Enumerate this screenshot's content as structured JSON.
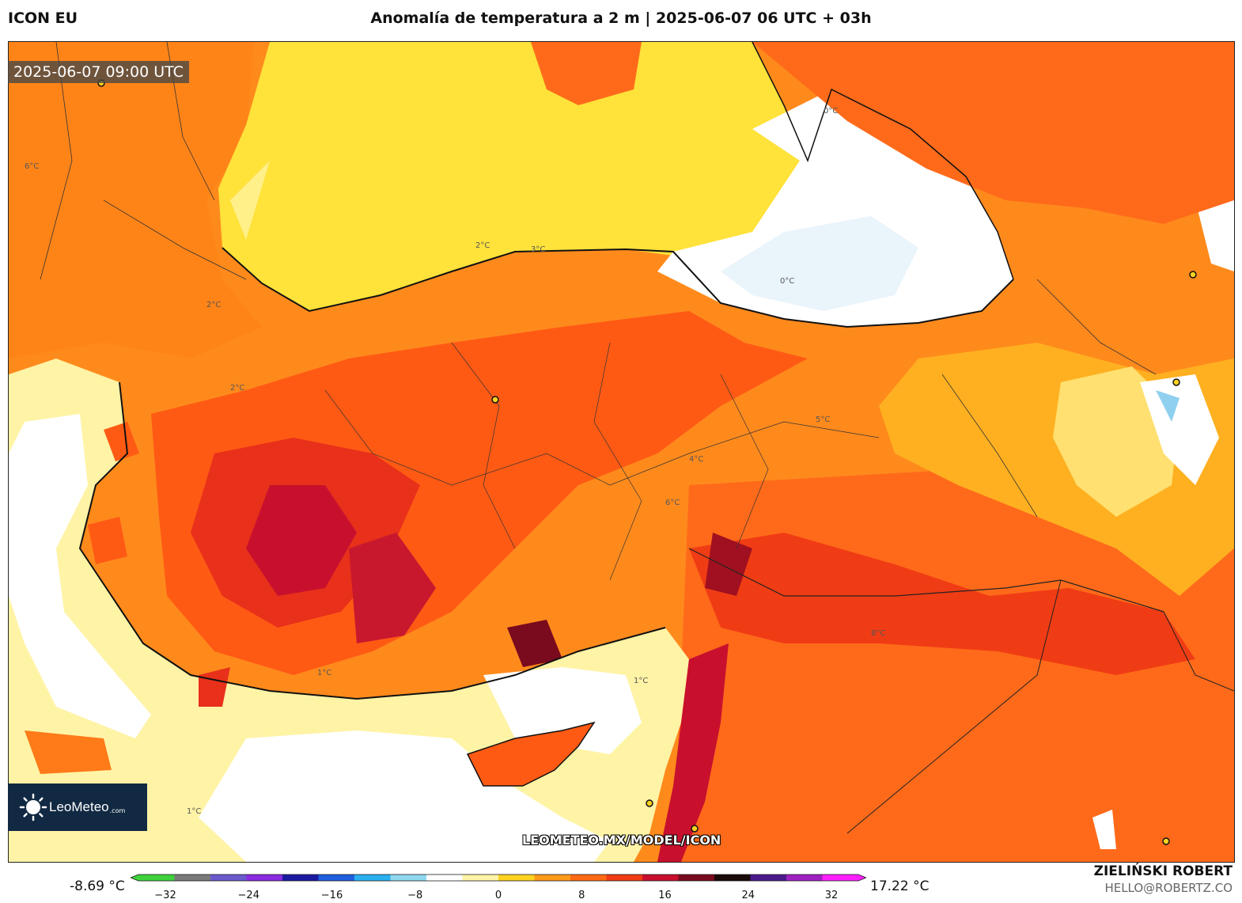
{
  "header": {
    "model": "ICON EU",
    "title": "Anomalía de temperatura a 2 m | 2025-06-07 06 UTC + 03h"
  },
  "map": {
    "valid_time": "2025-06-07 09:00 UTC",
    "watermark_url": "LEOMETEO.MX/MODEL/ICON",
    "contour_labels": [
      "0°C",
      "0°C",
      "1°C",
      "1°C",
      "1°C",
      "2°C",
      "2°C",
      "2°C",
      "3°C",
      "4°C",
      "5°C",
      "6°C",
      "6°C",
      "8°C"
    ]
  },
  "logo": {
    "name": "LeoMeteo",
    "suffix": ".com"
  },
  "colorbar": {
    "min_label": "-8.69 °C",
    "max_label": "17.22 °C",
    "ticks": [
      "−32",
      "−24",
      "−16",
      "−8",
      "0",
      "8",
      "16",
      "24",
      "32"
    ],
    "colors": [
      "#3fd23c",
      "#7a7a7a",
      "#6a5acd",
      "#8b2be2",
      "#1a1aa0",
      "#1f5fe0",
      "#2ab0f0",
      "#8fd8f0",
      "#ffffff",
      "#fff3a6",
      "#ffd21f",
      "#ff9a1a",
      "#ff6a14",
      "#f03c14",
      "#c8102e",
      "#7a0a1e",
      "#1a0a0a",
      "#4b1a8a",
      "#a020c0",
      "#ff20ff"
    ]
  },
  "credits": {
    "author": "ZIELIŃSKI ROBERT",
    "email": "HELLO@ROBERTZ.CO"
  }
}
